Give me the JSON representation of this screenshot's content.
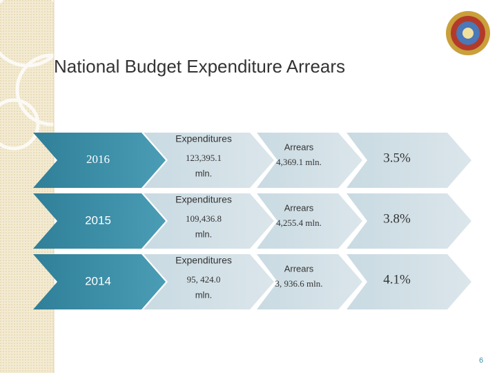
{
  "title": "National Budget Expenditure Arrears",
  "rows": [
    {
      "year": "2016",
      "expenditures_label": "Expenditures",
      "expenditures_value": "123,395.1",
      "expenditures_unit": "mln.",
      "arrears_label": "Arrears",
      "arrears_value": "4,369.1 mln.",
      "share": "3.5%"
    },
    {
      "year": "2015",
      "expenditures_label": "Expenditures",
      "expenditures_value": "109,436.8",
      "expenditures_unit": "mln.",
      "arrears_label": "Arrears",
      "arrears_value": "4,255.4 mln.",
      "share": "3.8%"
    },
    {
      "year": "2014",
      "expenditures_label": "Expenditures",
      "expenditures_value": "95, 424.0",
      "expenditures_unit": "mln.",
      "arrears_label": "Arrears",
      "arrears_value": "3, 936.6 mln.",
      "share": "4.1%"
    }
  ],
  "page_number": "6"
}
